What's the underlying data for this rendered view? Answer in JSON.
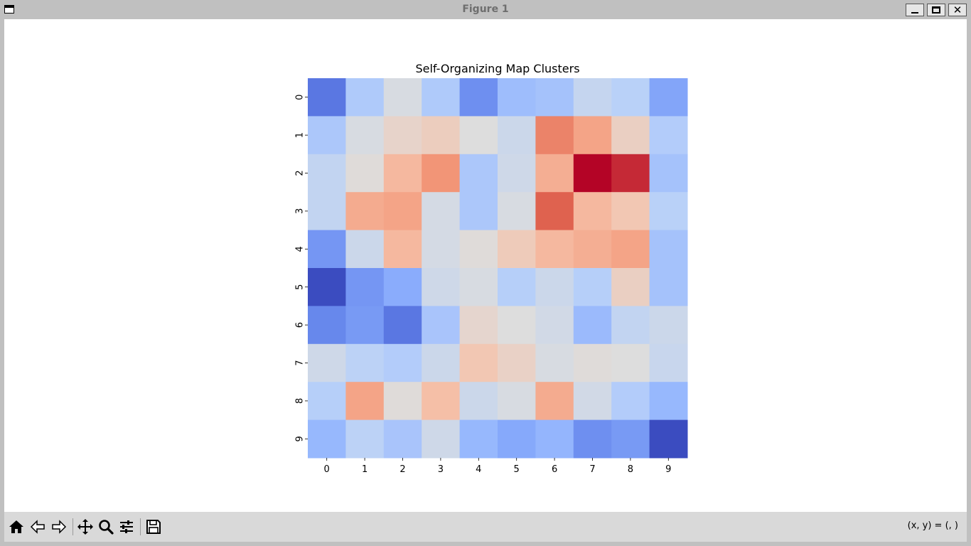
{
  "window": {
    "title": "Figure 1"
  },
  "toolbar": {
    "buttons": [
      {
        "name": "home-button",
        "icon": "home-icon"
      },
      {
        "name": "back-button",
        "icon": "arrow-left-icon"
      },
      {
        "name": "forward-button",
        "icon": "arrow-right-icon"
      },
      {
        "name": "pan-button",
        "icon": "move-icon"
      },
      {
        "name": "zoom-button",
        "icon": "magnifier-icon"
      },
      {
        "name": "configure-subplots-button",
        "icon": "sliders-icon"
      },
      {
        "name": "save-button",
        "icon": "floppy-disk-icon"
      }
    ],
    "coords_text": "(x, y) = (, )"
  },
  "chart_data": {
    "type": "heatmap",
    "title": "Self-Organizing Map Clusters",
    "colormap": "coolwarm",
    "colorbar": false,
    "x_ticks": [
      "0",
      "1",
      "2",
      "3",
      "4",
      "5",
      "6",
      "7",
      "8",
      "9"
    ],
    "y_ticks": [
      "0",
      "1",
      "2",
      "3",
      "4",
      "5",
      "6",
      "7",
      "8",
      "9"
    ],
    "vmin": 0,
    "vmax": 1,
    "values": [
      [
        0.1,
        0.35,
        0.48,
        0.35,
        0.16,
        0.3,
        0.32,
        0.42,
        0.38,
        0.22
      ],
      [
        0.34,
        0.48,
        0.55,
        0.58,
        0.5,
        0.44,
        0.8,
        0.72,
        0.57,
        0.36
      ],
      [
        0.41,
        0.51,
        0.66,
        0.76,
        0.34,
        0.45,
        0.69,
        1.0,
        0.95,
        0.32
      ],
      [
        0.41,
        0.7,
        0.72,
        0.47,
        0.34,
        0.48,
        0.87,
        0.66,
        0.61,
        0.38
      ],
      [
        0.18,
        0.44,
        0.66,
        0.47,
        0.51,
        0.59,
        0.66,
        0.69,
        0.72,
        0.32
      ],
      [
        0.0,
        0.18,
        0.24,
        0.45,
        0.48,
        0.37,
        0.44,
        0.37,
        0.57,
        0.32
      ],
      [
        0.14,
        0.19,
        0.1,
        0.33,
        0.54,
        0.5,
        0.46,
        0.29,
        0.41,
        0.44
      ],
      [
        0.45,
        0.39,
        0.36,
        0.44,
        0.61,
        0.56,
        0.48,
        0.51,
        0.5,
        0.43
      ],
      [
        0.37,
        0.72,
        0.51,
        0.64,
        0.44,
        0.48,
        0.7,
        0.46,
        0.36,
        0.28
      ],
      [
        0.28,
        0.39,
        0.33,
        0.45,
        0.28,
        0.23,
        0.27,
        0.16,
        0.19,
        0.0
      ]
    ]
  }
}
